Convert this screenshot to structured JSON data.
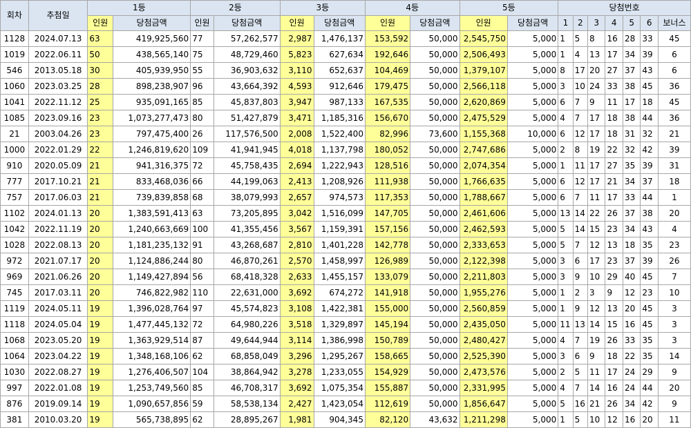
{
  "header": {
    "round": "회차",
    "date": "추첨일",
    "ranks": [
      "1등",
      "2등",
      "3등",
      "4등",
      "5등"
    ],
    "winners": "인원",
    "amount": "당첨금액",
    "numbers": "당첨번호",
    "number_cols": [
      "1",
      "2",
      "3",
      "4",
      "5",
      "6"
    ],
    "bonus": "보너스"
  },
  "rows": [
    {
      "round": "1128",
      "date": "2024.07.13",
      "r1n": "63",
      "r1a": "419,925,560",
      "r2n": "77",
      "r2a": "57,262,577",
      "r3n": "2,987",
      "r3a": "1,476,137",
      "r4n": "153,592",
      "r4a": "50,000",
      "r5n": "2,545,750",
      "r5a": "5,000",
      "n": [
        "1",
        "5",
        "8",
        "16",
        "28",
        "33"
      ],
      "bonus": "45"
    },
    {
      "round": "1019",
      "date": "2022.06.11",
      "r1n": "50",
      "r1a": "438,565,140",
      "r2n": "75",
      "r2a": "48,729,460",
      "r3n": "5,823",
      "r3a": "627,634",
      "r4n": "192,646",
      "r4a": "50,000",
      "r5n": "2,506,493",
      "r5a": "5,000",
      "n": [
        "1",
        "4",
        "13",
        "17",
        "34",
        "39"
      ],
      "bonus": "6"
    },
    {
      "round": "546",
      "date": "2013.05.18",
      "r1n": "30",
      "r1a": "405,939,950",
      "r2n": "55",
      "r2a": "36,903,632",
      "r3n": "3,110",
      "r3a": "652,637",
      "r4n": "104,469",
      "r4a": "50,000",
      "r5n": "1,379,107",
      "r5a": "5,000",
      "n": [
        "8",
        "17",
        "20",
        "27",
        "37",
        "43"
      ],
      "bonus": "6"
    },
    {
      "round": "1060",
      "date": "2023.03.25",
      "r1n": "28",
      "r1a": "898,238,907",
      "r2n": "96",
      "r2a": "43,664,392",
      "r3n": "4,593",
      "r3a": "912,646",
      "r4n": "179,475",
      "r4a": "50,000",
      "r5n": "2,566,118",
      "r5a": "5,000",
      "n": [
        "3",
        "10",
        "24",
        "33",
        "38",
        "45"
      ],
      "bonus": "36"
    },
    {
      "round": "1041",
      "date": "2022.11.12",
      "r1n": "25",
      "r1a": "935,091,165",
      "r2n": "85",
      "r2a": "45,837,803",
      "r3n": "3,947",
      "r3a": "987,133",
      "r4n": "167,535",
      "r4a": "50,000",
      "r5n": "2,620,869",
      "r5a": "5,000",
      "n": [
        "6",
        "7",
        "9",
        "11",
        "17",
        "18"
      ],
      "bonus": "45"
    },
    {
      "round": "1085",
      "date": "2023.09.16",
      "r1n": "23",
      "r1a": "1,073,277,473",
      "r2n": "80",
      "r2a": "51,427,879",
      "r3n": "3,471",
      "r3a": "1,185,316",
      "r4n": "156,670",
      "r4a": "50,000",
      "r5n": "2,475,529",
      "r5a": "5,000",
      "n": [
        "4",
        "7",
        "17",
        "18",
        "38",
        "44"
      ],
      "bonus": "36"
    },
    {
      "round": "21",
      "date": "2003.04.26",
      "r1n": "23",
      "r1a": "797,475,400",
      "r2n": "26",
      "r2a": "117,576,500",
      "r3n": "2,008",
      "r3a": "1,522,400",
      "r4n": "82,996",
      "r4a": "73,600",
      "r5n": "1,155,368",
      "r5a": "10,000",
      "n": [
        "6",
        "12",
        "17",
        "18",
        "31",
        "32"
      ],
      "bonus": "21"
    },
    {
      "round": "1000",
      "date": "2022.01.29",
      "r1n": "22",
      "r1a": "1,246,819,620",
      "r2n": "109",
      "r2a": "41,941,945",
      "r3n": "4,018",
      "r3a": "1,137,798",
      "r4n": "180,052",
      "r4a": "50,000",
      "r5n": "2,747,686",
      "r5a": "5,000",
      "n": [
        "2",
        "8",
        "19",
        "22",
        "32",
        "42"
      ],
      "bonus": "39"
    },
    {
      "round": "910",
      "date": "2020.05.09",
      "r1n": "21",
      "r1a": "941,316,375",
      "r2n": "72",
      "r2a": "45,758,435",
      "r3n": "2,694",
      "r3a": "1,222,943",
      "r4n": "128,516",
      "r4a": "50,000",
      "r5n": "2,074,354",
      "r5a": "5,000",
      "n": [
        "1",
        "11",
        "17",
        "27",
        "35",
        "39"
      ],
      "bonus": "31"
    },
    {
      "round": "777",
      "date": "2017.10.21",
      "r1n": "21",
      "r1a": "833,468,036",
      "r2n": "66",
      "r2a": "44,199,063",
      "r3n": "2,413",
      "r3a": "1,208,926",
      "r4n": "111,938",
      "r4a": "50,000",
      "r5n": "1,766,635",
      "r5a": "5,000",
      "n": [
        "6",
        "12",
        "17",
        "21",
        "34",
        "37"
      ],
      "bonus": "18"
    },
    {
      "round": "757",
      "date": "2017.06.03",
      "r1n": "21",
      "r1a": "739,839,858",
      "r2n": "68",
      "r2a": "38,079,993",
      "r3n": "2,657",
      "r3a": "974,573",
      "r4n": "117,353",
      "r4a": "50,000",
      "r5n": "1,788,667",
      "r5a": "5,000",
      "n": [
        "6",
        "7",
        "11",
        "17",
        "33",
        "44"
      ],
      "bonus": "1"
    },
    {
      "round": "1102",
      "date": "2024.01.13",
      "r1n": "20",
      "r1a": "1,383,591,413",
      "r2n": "63",
      "r2a": "73,205,895",
      "r3n": "3,042",
      "r3a": "1,516,099",
      "r4n": "147,705",
      "r4a": "50,000",
      "r5n": "2,461,606",
      "r5a": "5,000",
      "n": [
        "13",
        "14",
        "22",
        "26",
        "37",
        "38"
      ],
      "bonus": "20"
    },
    {
      "round": "1042",
      "date": "2022.11.19",
      "r1n": "20",
      "r1a": "1,240,663,669",
      "r2n": "100",
      "r2a": "41,355,456",
      "r3n": "3,567",
      "r3a": "1,159,391",
      "r4n": "157,156",
      "r4a": "50,000",
      "r5n": "2,462,593",
      "r5a": "5,000",
      "n": [
        "5",
        "14",
        "15",
        "23",
        "34",
        "43"
      ],
      "bonus": "4"
    },
    {
      "round": "1028",
      "date": "2022.08.13",
      "r1n": "20",
      "r1a": "1,181,235,132",
      "r2n": "91",
      "r2a": "43,268,687",
      "r3n": "2,810",
      "r3a": "1,401,228",
      "r4n": "142,778",
      "r4a": "50,000",
      "r5n": "2,333,653",
      "r5a": "5,000",
      "n": [
        "5",
        "7",
        "12",
        "13",
        "18",
        "35"
      ],
      "bonus": "23"
    },
    {
      "round": "972",
      "date": "2021.07.17",
      "r1n": "20",
      "r1a": "1,124,886,244",
      "r2n": "80",
      "r2a": "46,870,261",
      "r3n": "2,570",
      "r3a": "1,458,997",
      "r4n": "126,989",
      "r4a": "50,000",
      "r5n": "2,122,398",
      "r5a": "5,000",
      "n": [
        "3",
        "6",
        "17",
        "23",
        "37",
        "39"
      ],
      "bonus": "26"
    },
    {
      "round": "969",
      "date": "2021.06.26",
      "r1n": "20",
      "r1a": "1,149,427,894",
      "r2n": "56",
      "r2a": "68,418,328",
      "r3n": "2,633",
      "r3a": "1,455,157",
      "r4n": "133,079",
      "r4a": "50,000",
      "r5n": "2,211,803",
      "r5a": "5,000",
      "n": [
        "3",
        "9",
        "10",
        "29",
        "40",
        "45"
      ],
      "bonus": "7"
    },
    {
      "round": "745",
      "date": "2017.03.11",
      "r1n": "20",
      "r1a": "746,822,982",
      "r2n": "110",
      "r2a": "22,631,000",
      "r3n": "3,692",
      "r3a": "674,272",
      "r4n": "141,918",
      "r4a": "50,000",
      "r5n": "1,955,276",
      "r5a": "5,000",
      "n": [
        "1",
        "2",
        "3",
        "9",
        "12",
        "23"
      ],
      "bonus": "10"
    },
    {
      "round": "1119",
      "date": "2024.05.11",
      "r1n": "19",
      "r1a": "1,396,028,764",
      "r2n": "97",
      "r2a": "45,574,823",
      "r3n": "3,108",
      "r3a": "1,422,381",
      "r4n": "155,000",
      "r4a": "50,000",
      "r5n": "2,560,859",
      "r5a": "5,000",
      "n": [
        "1",
        "9",
        "12",
        "13",
        "20",
        "45"
      ],
      "bonus": "3"
    },
    {
      "round": "1118",
      "date": "2024.05.04",
      "r1n": "19",
      "r1a": "1,477,445,132",
      "r2n": "72",
      "r2a": "64,980,226",
      "r3n": "3,518",
      "r3a": "1,329,897",
      "r4n": "145,194",
      "r4a": "50,000",
      "r5n": "2,435,050",
      "r5a": "5,000",
      "n": [
        "11",
        "13",
        "14",
        "15",
        "16",
        "45"
      ],
      "bonus": "3"
    },
    {
      "round": "1068",
      "date": "2023.05.20",
      "r1n": "19",
      "r1a": "1,363,929,514",
      "r2n": "87",
      "r2a": "49,644,944",
      "r3n": "3,114",
      "r3a": "1,386,998",
      "r4n": "150,789",
      "r4a": "50,000",
      "r5n": "2,480,427",
      "r5a": "5,000",
      "n": [
        "4",
        "7",
        "19",
        "26",
        "33",
        "35"
      ],
      "bonus": "3"
    },
    {
      "round": "1064",
      "date": "2023.04.22",
      "r1n": "19",
      "r1a": "1,348,168,106",
      "r2n": "62",
      "r2a": "68,858,049",
      "r3n": "3,296",
      "r3a": "1,295,267",
      "r4n": "158,665",
      "r4a": "50,000",
      "r5n": "2,525,390",
      "r5a": "5,000",
      "n": [
        "3",
        "6",
        "9",
        "18",
        "22",
        "35"
      ],
      "bonus": "14"
    },
    {
      "round": "1030",
      "date": "2022.08.27",
      "r1n": "19",
      "r1a": "1,276,406,507",
      "r2n": "104",
      "r2a": "38,864,942",
      "r3n": "3,278",
      "r3a": "1,233,055",
      "r4n": "154,929",
      "r4a": "50,000",
      "r5n": "2,473,576",
      "r5a": "5,000",
      "n": [
        "2",
        "5",
        "11",
        "17",
        "24",
        "29"
      ],
      "bonus": "9"
    },
    {
      "round": "997",
      "date": "2022.01.08",
      "r1n": "19",
      "r1a": "1,253,749,560",
      "r2n": "85",
      "r2a": "46,708,317",
      "r3n": "3,692",
      "r3a": "1,075,354",
      "r4n": "155,887",
      "r4a": "50,000",
      "r5n": "2,331,995",
      "r5a": "5,000",
      "n": [
        "4",
        "7",
        "14",
        "16",
        "24",
        "44"
      ],
      "bonus": "20"
    },
    {
      "round": "876",
      "date": "2019.09.14",
      "r1n": "19",
      "r1a": "1,090,657,856",
      "r2n": "59",
      "r2a": "58,538,134",
      "r3n": "2,427",
      "r3a": "1,423,054",
      "r4n": "112,619",
      "r4a": "50,000",
      "r5n": "1,856,647",
      "r5a": "5,000",
      "n": [
        "5",
        "16",
        "21",
        "26",
        "34",
        "42"
      ],
      "bonus": "9"
    },
    {
      "round": "381",
      "date": "2010.03.20",
      "r1n": "19",
      "r1a": "565,738,895",
      "r2n": "62",
      "r2a": "28,895,267",
      "r3n": "1,981",
      "r3a": "904,345",
      "r4n": "82,120",
      "r4a": "43,632",
      "r5n": "1,211,298",
      "r5a": "5,000",
      "n": [
        "1",
        "5",
        "10",
        "12",
        "16",
        "20"
      ],
      "bonus": "11"
    }
  ]
}
